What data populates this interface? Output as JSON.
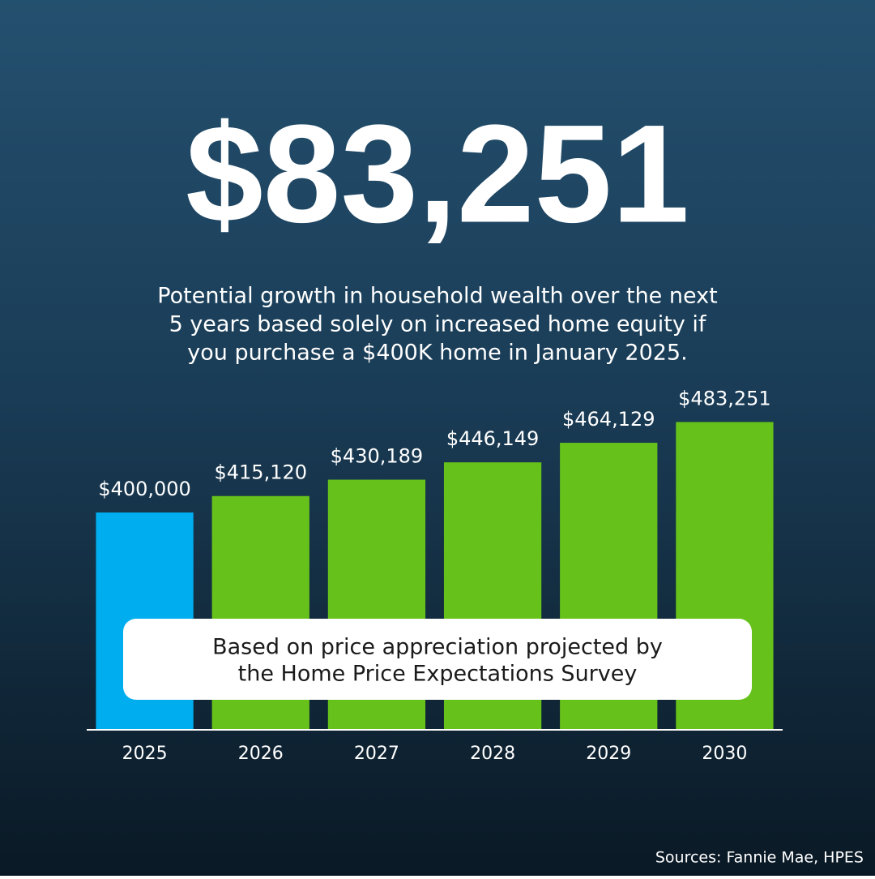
{
  "chart_data": {
    "type": "bar",
    "title": "$83,251",
    "subtitle": [
      "Potential growth in household wealth over the next",
      "5 years based solely on increased home equity if",
      "you purchase a $400K home in January 2025."
    ],
    "note": [
      "Based on price appreciation projected by",
      "the Home Price Expectations Survey"
    ],
    "source": "Sources: Fannie Mae, HPES",
    "categories": [
      "2025",
      "2026",
      "2027",
      "2028",
      "2029",
      "2030"
    ],
    "values": [
      400000,
      415120,
      430189,
      446149,
      464129,
      483251
    ],
    "value_labels": [
      "$400,000",
      "$415,120",
      "$430,189",
      "$446,149",
      "$464,129",
      "$483,251"
    ],
    "colors": [
      "#00aeef",
      "#66c21a",
      "#66c21a",
      "#66c21a",
      "#66c21a",
      "#66c21a"
    ],
    "ylim": [
      200000,
      550000
    ]
  }
}
